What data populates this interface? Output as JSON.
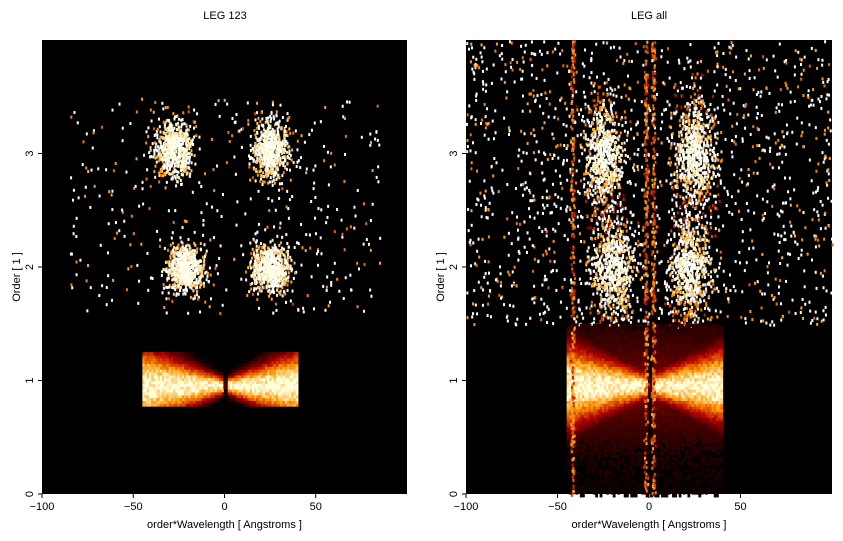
{
  "chart_data": [
    {
      "type": "heatmap",
      "title": "LEG 123",
      "xlabel": "order*Wavelength [ Angstroms ]",
      "ylabel": "Order [ 1 ]",
      "xlim": [
        -100,
        100
      ],
      "ylim": [
        0,
        4
      ],
      "xticks": [
        -100,
        -50,
        0,
        50
      ],
      "yticks": [
        0,
        1,
        2,
        3
      ],
      "colormap": "heat",
      "background": "#000000",
      "blobs": [
        {
          "order": 1,
          "x_range": [
            -45,
            40
          ],
          "y_range": [
            0.8,
            1.25
          ],
          "intensity": "high",
          "notch_at_x": 0
        },
        {
          "order": 2,
          "centers_x": [
            -22,
            25
          ],
          "spread_x": 22,
          "y_range": [
            1.8,
            2.2
          ],
          "intensity": "medium"
        },
        {
          "order": 3,
          "centers_x": [
            -28,
            25
          ],
          "spread_x": 22,
          "y_range": [
            2.8,
            3.3
          ],
          "intensity": "medium"
        }
      ]
    },
    {
      "type": "heatmap",
      "title": "LEG all",
      "xlabel": "order*Wavelength [ Angstroms ]",
      "ylabel": "Order [ 1 ]",
      "xlim": [
        -100,
        100
      ],
      "ylim": [
        0,
        4
      ],
      "xticks": [
        -100,
        -50,
        0,
        50
      ],
      "yticks": [
        0,
        1,
        2,
        3
      ],
      "colormap": "heat",
      "background": "#000000",
      "blobs": [
        {
          "order": 1,
          "x_range": [
            -45,
            40
          ],
          "y_range": [
            0.0,
            1.5
          ],
          "intensity": "high",
          "notch_at_x": 0
        },
        {
          "order": 2,
          "centers_x": [
            -20,
            22
          ],
          "spread_x": 25,
          "y_range": [
            1.5,
            2.5
          ],
          "intensity": "medium"
        },
        {
          "order": 3,
          "centers_x": [
            -25,
            25
          ],
          "spread_x": 25,
          "y_range": [
            2.5,
            3.5
          ],
          "intensity": "medium"
        }
      ]
    }
  ],
  "colors": {
    "background": "#000000",
    "hot": "#fff4c0",
    "warm": "#f2a030",
    "cool": "#6a1a00"
  }
}
